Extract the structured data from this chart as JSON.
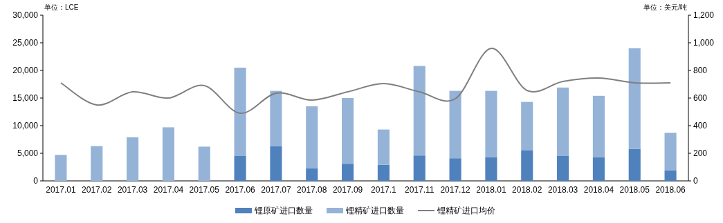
{
  "chart_data": {
    "type": "bar",
    "stacked": true,
    "ylabel": "单位：LCE",
    "y2label": "单位：美元/吨",
    "categories": [
      "2017.01",
      "2017.02",
      "2017.03",
      "2017.04",
      "2017.05",
      "2017.06",
      "2017.07",
      "2017.08",
      "2017.09",
      "2017.1",
      "2017.11",
      "2017.12",
      "2018.01",
      "2018.02",
      "2018.03",
      "2018.04",
      "2018.05",
      "2018.06"
    ],
    "series": [
      {
        "name": "锂原矿进口数量",
        "color": "#4f81bd",
        "values": [
          0,
          0,
          0,
          0,
          0,
          4500,
          6300,
          2300,
          3100,
          2900,
          4600,
          4100,
          4300,
          5500,
          4500,
          4300,
          5800,
          1900
        ]
      },
      {
        "name": "锂精矿进口数量",
        "color": "#95b3d7",
        "values": [
          4700,
          6300,
          7900,
          9700,
          6200,
          16000,
          10000,
          11200,
          11900,
          6400,
          16200,
          12200,
          12000,
          8800,
          12400,
          11100,
          18200,
          6800
        ]
      },
      {
        "name": "锂精矿进口均价",
        "type": "line",
        "axis": "y2",
        "color": "#7f7f7f",
        "values": [
          710,
          550,
          645,
          600,
          690,
          490,
          635,
          585,
          645,
          705,
          645,
          595,
          960,
          655,
          720,
          745,
          710,
          710
        ]
      }
    ],
    "ylim": [
      0,
      30000
    ],
    "yticks": [
      0,
      {
        "value": 5000,
        "label": "5,000"
      },
      {
        "value": 10000,
        "label": "10,000"
      },
      {
        "value": 15000,
        "label": "15,000"
      },
      {
        "value": 20000,
        "label": "20,000"
      },
      {
        "value": 25000,
        "label": "25,000"
      },
      {
        "value": 30000,
        "label": "30,000"
      }
    ],
    "y2lim": [
      0,
      1200
    ],
    "y2ticks": [
      0,
      200,
      400,
      600,
      800,
      {
        "value": 1000,
        "label": "1,000"
      },
      {
        "value": 1200,
        "label": "1,200"
      }
    ],
    "grid": false,
    "legend": "bottom"
  }
}
